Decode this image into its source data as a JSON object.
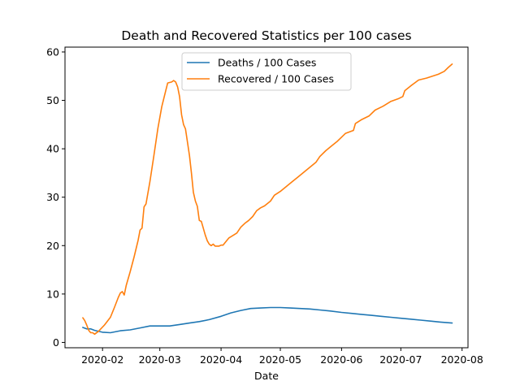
{
  "chart_data": {
    "type": "line",
    "title": "Death and Recovered Statistics per 100 cases",
    "xlabel": "Date",
    "ylabel": "",
    "xlim": [
      "2020-01-13",
      "2020-08-04"
    ],
    "ylim": [
      -1.1,
      61
    ],
    "x_ticks": [
      "2020-02-01",
      "2020-03-01",
      "2020-04-01",
      "2020-05-01",
      "2020-06-01",
      "2020-07-01",
      "2020-08-01"
    ],
    "x_tick_labels": [
      "2020-02",
      "2020-03",
      "2020-04",
      "2020-05",
      "2020-06",
      "2020-07",
      "2020-08"
    ],
    "y_ticks": [
      0,
      10,
      20,
      30,
      40,
      50,
      60
    ],
    "y_tick_labels": [
      "0",
      "10",
      "20",
      "30",
      "40",
      "50",
      "60"
    ],
    "grid": false,
    "legend_position": "upper-center",
    "series": [
      {
        "name": "Deaths / 100 Cases",
        "color": "#1f77b4",
        "points": [
          [
            "2020-01-22",
            3.1
          ],
          [
            "2020-01-24",
            2.8
          ],
          [
            "2020-01-26",
            2.8
          ],
          [
            "2020-01-28",
            2.5
          ],
          [
            "2020-02-01",
            2.1
          ],
          [
            "2020-02-05",
            2.0
          ],
          [
            "2020-02-10",
            2.4
          ],
          [
            "2020-02-15",
            2.6
          ],
          [
            "2020-02-20",
            3.0
          ],
          [
            "2020-02-25",
            3.4
          ],
          [
            "2020-03-01",
            3.4
          ],
          [
            "2020-03-06",
            3.4
          ],
          [
            "2020-03-11",
            3.7
          ],
          [
            "2020-03-16",
            4.0
          ],
          [
            "2020-03-21",
            4.3
          ],
          [
            "2020-03-26",
            4.7
          ],
          [
            "2020-04-01",
            5.4
          ],
          [
            "2020-04-06",
            6.1
          ],
          [
            "2020-04-11",
            6.6
          ],
          [
            "2020-04-16",
            7.0
          ],
          [
            "2020-04-21",
            7.1
          ],
          [
            "2020-04-26",
            7.2
          ],
          [
            "2020-05-01",
            7.2
          ],
          [
            "2020-05-06",
            7.1
          ],
          [
            "2020-05-11",
            7.0
          ],
          [
            "2020-05-16",
            6.9
          ],
          [
            "2020-05-21",
            6.7
          ],
          [
            "2020-05-26",
            6.5
          ],
          [
            "2020-06-01",
            6.2
          ],
          [
            "2020-06-06",
            6.0
          ],
          [
            "2020-06-11",
            5.8
          ],
          [
            "2020-06-16",
            5.6
          ],
          [
            "2020-06-21",
            5.4
          ],
          [
            "2020-06-26",
            5.2
          ],
          [
            "2020-07-01",
            5.0
          ],
          [
            "2020-07-06",
            4.8
          ],
          [
            "2020-07-11",
            4.6
          ],
          [
            "2020-07-16",
            4.4
          ],
          [
            "2020-07-21",
            4.2
          ],
          [
            "2020-07-27",
            4.0
          ]
        ]
      },
      {
        "name": "Recovered / 100 Cases",
        "color": "#ff7f0e",
        "points": [
          [
            "2020-01-22",
            5.1
          ],
          [
            "2020-01-23",
            4.5
          ],
          [
            "2020-01-24",
            3.6
          ],
          [
            "2020-01-25",
            2.5
          ],
          [
            "2020-01-26",
            2.0
          ],
          [
            "2020-01-27",
            2.0
          ],
          [
            "2020-01-28",
            1.7
          ],
          [
            "2020-01-30",
            2.3
          ],
          [
            "2020-02-02",
            3.6
          ],
          [
            "2020-02-05",
            5.2
          ],
          [
            "2020-02-07",
            7.2
          ],
          [
            "2020-02-09",
            9.3
          ],
          [
            "2020-02-10",
            10.2
          ],
          [
            "2020-02-11",
            10.5
          ],
          [
            "2020-02-12",
            9.8
          ],
          [
            "2020-02-13",
            11.8
          ],
          [
            "2020-02-15",
            14.6
          ],
          [
            "2020-02-17",
            17.7
          ],
          [
            "2020-02-19",
            21.1
          ],
          [
            "2020-02-20",
            23.2
          ],
          [
            "2020-02-21",
            23.6
          ],
          [
            "2020-02-22",
            28.0
          ],
          [
            "2020-02-23",
            28.6
          ],
          [
            "2020-02-25",
            33.2
          ],
          [
            "2020-02-27",
            38.6
          ],
          [
            "2020-02-29",
            44.2
          ],
          [
            "2020-03-02",
            48.7
          ],
          [
            "2020-03-04",
            52.0
          ],
          [
            "2020-03-05",
            53.6
          ],
          [
            "2020-03-07",
            53.8
          ],
          [
            "2020-03-08",
            54.1
          ],
          [
            "2020-03-09",
            53.8
          ],
          [
            "2020-03-10",
            52.8
          ],
          [
            "2020-03-11",
            50.8
          ],
          [
            "2020-03-12",
            47.0
          ],
          [
            "2020-03-13",
            45.0
          ],
          [
            "2020-03-14",
            44.1
          ],
          [
            "2020-03-15",
            41.4
          ],
          [
            "2020-03-16",
            38.6
          ],
          [
            "2020-03-17",
            35.0
          ],
          [
            "2020-03-18",
            31.0
          ],
          [
            "2020-03-19",
            29.2
          ],
          [
            "2020-03-20",
            28.1
          ],
          [
            "2020-03-21",
            25.2
          ],
          [
            "2020-03-22",
            25.0
          ],
          [
            "2020-03-23",
            23.6
          ],
          [
            "2020-03-24",
            22.2
          ],
          [
            "2020-03-25",
            21.0
          ],
          [
            "2020-03-26",
            20.3
          ],
          [
            "2020-03-27",
            20.0
          ],
          [
            "2020-03-28",
            20.3
          ],
          [
            "2020-03-29",
            19.9
          ],
          [
            "2020-03-31",
            19.9
          ],
          [
            "2020-04-01",
            20.1
          ],
          [
            "2020-04-02",
            20.1
          ],
          [
            "2020-04-03",
            20.6
          ],
          [
            "2020-04-05",
            21.6
          ],
          [
            "2020-04-07",
            22.1
          ],
          [
            "2020-04-09",
            22.6
          ],
          [
            "2020-04-11",
            23.8
          ],
          [
            "2020-04-13",
            24.6
          ],
          [
            "2020-04-15",
            25.2
          ],
          [
            "2020-04-17",
            26.0
          ],
          [
            "2020-04-19",
            27.2
          ],
          [
            "2020-04-21",
            27.8
          ],
          [
            "2020-04-23",
            28.2
          ],
          [
            "2020-04-26",
            29.2
          ],
          [
            "2020-04-28",
            30.4
          ],
          [
            "2020-05-01",
            31.2
          ],
          [
            "2020-05-04",
            32.2
          ],
          [
            "2020-05-07",
            33.2
          ],
          [
            "2020-05-10",
            34.2
          ],
          [
            "2020-05-13",
            35.2
          ],
          [
            "2020-05-16",
            36.2
          ],
          [
            "2020-05-19",
            37.2
          ],
          [
            "2020-05-21",
            38.4
          ],
          [
            "2020-05-24",
            39.6
          ],
          [
            "2020-05-27",
            40.6
          ],
          [
            "2020-05-30",
            41.6
          ],
          [
            "2020-06-01",
            42.4
          ],
          [
            "2020-06-03",
            43.2
          ],
          [
            "2020-06-07",
            43.8
          ],
          [
            "2020-06-08",
            45.2
          ],
          [
            "2020-06-11",
            46.0
          ],
          [
            "2020-06-15",
            46.8
          ],
          [
            "2020-06-18",
            48.0
          ],
          [
            "2020-06-22",
            48.8
          ],
          [
            "2020-06-26",
            49.8
          ],
          [
            "2020-06-30",
            50.4
          ],
          [
            "2020-07-02",
            50.8
          ],
          [
            "2020-07-03",
            52.0
          ],
          [
            "2020-07-06",
            53.0
          ],
          [
            "2020-07-10",
            54.2
          ],
          [
            "2020-07-14",
            54.6
          ],
          [
            "2020-07-17",
            55.0
          ],
          [
            "2020-07-20",
            55.4
          ],
          [
            "2020-07-23",
            56.0
          ],
          [
            "2020-07-25",
            56.8
          ],
          [
            "2020-07-27",
            57.5
          ]
        ]
      }
    ]
  }
}
